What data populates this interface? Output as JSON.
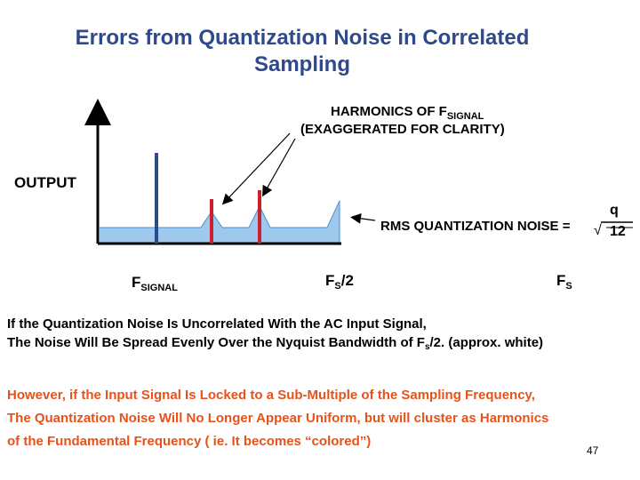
{
  "title": {
    "line1": "Errors from Quantization Noise in Correlated",
    "line2": "Sampling"
  },
  "diagram": {
    "output_label": "OUTPUT",
    "harmonics_label": {
      "line1_prefix": "HARMONICS OF F",
      "line1_sub": "SIGNAL",
      "line2": "(EXAGGERATED FOR CLARITY)"
    },
    "rms_label": "RMS QUANTIZATION NOISE =",
    "fraction": {
      "numerator": "q",
      "radical": "√",
      "denominator": "12"
    },
    "x_labels": {
      "fsignal_main": "F",
      "fsignal_sub": "SIGNAL",
      "fs2_main": "F",
      "fs2_sub": "S",
      "fs2_tail": "/2",
      "fs_main": "F",
      "fs_sub": "S"
    },
    "colors": {
      "noise_fill": "#9ec9ec",
      "noise_line": "#4a8fd0",
      "signal_bar": "#2e4a8c",
      "harmonic_bar": "#cc2030",
      "axis": "#000000"
    }
  },
  "paragraph1": {
    "line1": "If the Quantization Noise Is Uncorrelated With the AC Input Signal,",
    "line2_prefix": "The Noise Will Be Spread Evenly Over the Nyquist Bandwidth of F",
    "line2_sub": "s",
    "line2_suffix": "/2.  (approx. white)"
  },
  "paragraph2": {
    "line1": "However, if the Input Signal Is Locked to a Sub-Multiple of the Sampling Frequency,",
    "line2": "The Quantization Noise Will No Longer Appear Uniform, but will cluster as Harmonics",
    "line3": "of the Fundamental Frequency ( ie. It becomes “colored”)"
  },
  "page_number": "47"
}
